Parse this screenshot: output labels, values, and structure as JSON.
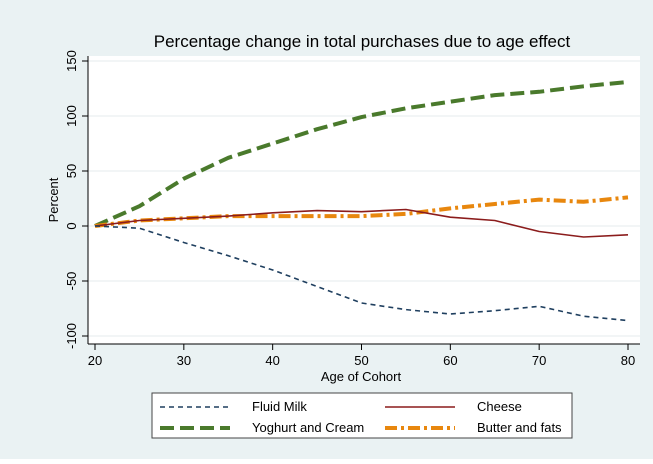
{
  "chart_data": {
    "type": "line",
    "title": "Percentage change in total purchases due to age effect",
    "xlabel": "Age of Cohort",
    "ylabel": "Percent",
    "xlim": [
      20,
      80
    ],
    "ylim": [
      -100,
      150
    ],
    "x_ticks": [
      20,
      30,
      40,
      50,
      60,
      70,
      80
    ],
    "y_ticks": [
      -100,
      -50,
      0,
      50,
      100,
      150
    ],
    "grid": true,
    "legend_position": "bottom",
    "x": [
      20,
      25,
      30,
      35,
      40,
      45,
      50,
      55,
      60,
      65,
      70,
      75,
      80
    ],
    "series": [
      {
        "name": "Fluid Milk",
        "color": "#1f3f5f",
        "dash": "dash",
        "values": [
          0,
          -2,
          -15,
          -27,
          -40,
          -55,
          -70,
          -76,
          -80,
          -77,
          -73,
          -82,
          -86
        ]
      },
      {
        "name": "Cheese",
        "color": "#8b1c1c",
        "dash": "solid",
        "values": [
          0,
          5,
          7,
          9,
          12,
          14,
          13,
          15,
          8,
          5,
          -5,
          -10,
          -8
        ]
      },
      {
        "name": "Yoghurt and Cream",
        "color": "#4a7a2c",
        "dash": "longdash",
        "values": [
          0,
          18,
          43,
          62,
          75,
          88,
          99,
          107,
          113,
          119,
          122,
          127,
          131
        ]
      },
      {
        "name": "Butter and fats",
        "color": "#e8870e",
        "dash": "dashdot",
        "values": [
          0,
          5,
          7,
          9,
          9,
          9,
          9,
          11,
          16,
          20,
          24,
          22,
          26
        ]
      }
    ]
  }
}
